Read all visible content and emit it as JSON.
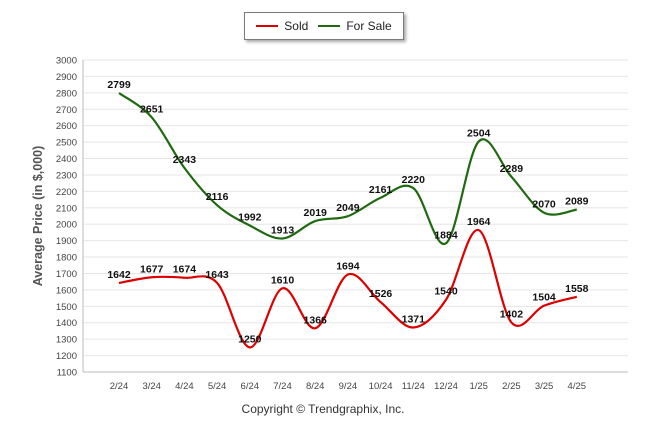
{
  "legend": {
    "sold_label": "Sold",
    "forsale_label": "For Sale"
  },
  "copyright": "Copyright © Trendgraphix, Inc.",
  "chart_data": {
    "type": "line",
    "categories": [
      "2/24",
      "3/24",
      "4/24",
      "5/24",
      "6/24",
      "7/24",
      "8/24",
      "9/24",
      "10/24",
      "11/24",
      "12/24",
      "1/25",
      "2/25",
      "3/25",
      "4/25"
    ],
    "series": [
      {
        "name": "Sold",
        "color": "#dd0000",
        "values": [
          1642,
          1677,
          1674,
          1643,
          1250,
          1610,
          1366,
          1694,
          1526,
          1371,
          1540,
          1964,
          1402,
          1504,
          1558
        ]
      },
      {
        "name": "For Sale",
        "color": "#1f6a10",
        "values": [
          2799,
          2651,
          2343,
          2116,
          1992,
          1913,
          2019,
          2049,
          2161,
          2220,
          1884,
          2504,
          2289,
          2070,
          2089
        ]
      }
    ],
    "ylabel": "Average Price (in $,000)",
    "xlabel": "",
    "ylim": [
      1100,
      3000
    ],
    "ytick_step": 100,
    "grid": true,
    "legend_position": "top-center"
  }
}
